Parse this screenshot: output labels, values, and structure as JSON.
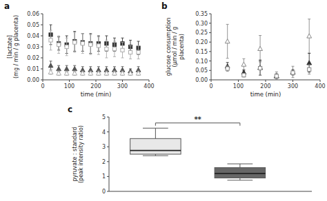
{
  "chart_data": [
    {
      "type": "scatter",
      "title": "a",
      "xlabel": "time (min)",
      "ylabel": "[lactate]\n(mg / min / g placenta)",
      "xlim": [
        0,
        400
      ],
      "xticks": [
        0,
        100,
        200,
        300,
        400
      ],
      "ylim": [
        0.0,
        0.06
      ],
      "yticks": [
        {
          "value": 0.0,
          "label": "0.00"
        },
        0.01,
        0.02,
        0.03,
        0.04,
        0.05,
        0.06
      ],
      "x": [
        30,
        60,
        90,
        120,
        150,
        180,
        210,
        240,
        270,
        300,
        330,
        360
      ],
      "series": [
        {
          "color": "#333333",
          "marker": "square",
          "values": [
            0.041,
            0.033,
            0.032,
            0.035,
            0.034,
            0.033,
            0.033,
            0.033,
            0.032,
            0.033,
            0.03,
            0.029
          ],
          "errors": [
            0.009,
            0.006,
            0.008,
            0.009,
            0.008,
            0.009,
            0.007,
            0.007,
            0.006,
            0.005,
            0.006,
            0.006
          ]
        },
        {
          "color": "#aaaaaa",
          "marker": "square-open",
          "values": [
            0.036,
            0.032,
            0.03,
            0.034,
            0.033,
            0.032,
            0.031,
            0.028,
            0.028,
            0.027,
            0.025,
            0.025
          ],
          "errors": [
            0.009,
            0.008,
            0.008,
            0.009,
            0.009,
            0.009,
            0.008,
            0.008,
            0.007,
            0.007,
            0.006,
            0.006
          ]
        },
        {
          "color": "#555555",
          "marker": "triangle",
          "values": [
            0.013,
            0.01,
            0.01,
            0.01,
            0.009,
            0.009,
            0.009,
            0.009,
            0.009,
            0.009,
            0.008,
            0.009
          ],
          "errors": [
            0.004,
            0.003,
            0.003,
            0.003,
            0.003,
            0.003,
            0.003,
            0.003,
            0.003,
            0.003,
            0.002,
            0.003
          ]
        },
        {
          "color": "#aaaaaa",
          "marker": "triangle-open",
          "values": [
            0.007,
            0.006,
            0.006,
            0.006,
            0.006,
            0.006,
            0.006,
            0.006,
            0.006,
            0.006,
            0.006,
            0.006
          ],
          "errors": [
            0.002,
            0.002,
            0.002,
            0.002,
            0.002,
            0.002,
            0.002,
            0.002,
            0.002,
            0.002,
            0.002,
            0.002
          ]
        }
      ]
    },
    {
      "type": "scatter",
      "title": "b",
      "xlabel": "time (min)",
      "ylabel": "glucose consumption\n(μmol / min / g\nplacenta)",
      "xlim": [
        0,
        400
      ],
      "xticks": [
        0,
        100,
        200,
        300,
        400
      ],
      "ylim": [
        0.0,
        0.35
      ],
      "yticks": [
        {
          "value": 0.0,
          "label": "0.00"
        },
        0.05,
        {
          "value": 0.1,
          "label": "0.10"
        },
        0.15,
        {
          "value": 0.2,
          "label": "0.20"
        },
        0.25,
        {
          "value": 0.3,
          "label": "0.30"
        },
        0.35
      ],
      "x": [
        60,
        120,
        180,
        240,
        300,
        360
      ],
      "series": [
        {
          "color": "#888888",
          "marker": "triangle-open",
          "values": [
            0.204,
            0.082,
            0.165,
            0.022,
            0.042,
            0.232
          ],
          "errors": [
            0.09,
            0.03,
            0.07,
            0.02,
            0.03,
            0.09
          ]
        },
        {
          "color": "#333333",
          "marker": "triangle",
          "values": [
            0.072,
            0.04,
            0.065,
            0.02,
            0.04,
            0.09
          ],
          "errors": [
            0.02,
            0.012,
            0.04,
            0.012,
            0.014,
            0.05
          ]
        },
        {
          "color": "#888888",
          "marker": "square-open",
          "values": [
            0.06,
            0.025,
            0.062,
            0.02,
            0.038,
            0.055
          ],
          "errors": [
            0.015,
            0.01,
            0.038,
            0.012,
            0.012,
            0.025
          ]
        }
      ]
    },
    {
      "type": "box",
      "title": "c",
      "ylabel": "pyruvate : standard\n(peak intensity ratio)",
      "ylim": [
        0,
        5
      ],
      "yticks": [
        0,
        1,
        2,
        3,
        4,
        5
      ],
      "tick_labels": "y",
      "colors": [
        "#e8e8e8",
        "#666666"
      ],
      "boxes": [
        {
          "median": 2.75,
          "q1": 2.5,
          "q3": 3.55,
          "whisker_low": 2.4,
          "whisker_high": 4.25
        },
        {
          "median": 1.2,
          "q1": 0.9,
          "q3": 1.6,
          "whisker_low": 0.75,
          "whisker_high": 1.85
        }
      ],
      "annotations": [
        {
          "text": "**",
          "y": 4.6,
          "between": [
            0,
            1
          ]
        }
      ]
    }
  ]
}
